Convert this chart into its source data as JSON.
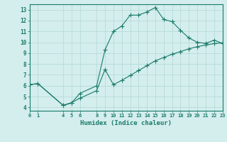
{
  "line1_x": [
    0,
    1,
    4,
    5,
    6,
    8,
    9,
    10,
    11,
    12,
    13,
    14,
    15,
    16,
    17,
    18,
    19,
    20,
    21,
    22,
    23
  ],
  "line1_y": [
    6.1,
    6.2,
    4.2,
    4.4,
    5.3,
    6.0,
    9.3,
    11.0,
    11.5,
    12.5,
    12.5,
    12.8,
    13.2,
    12.1,
    11.9,
    11.1,
    10.4,
    10.0,
    9.9,
    10.2,
    9.9
  ],
  "line2_x": [
    0,
    1,
    4,
    5,
    6,
    8,
    9,
    10,
    11,
    12,
    13,
    14,
    15,
    16,
    17,
    18,
    19,
    20,
    21,
    22,
    23
  ],
  "line2_y": [
    6.1,
    6.2,
    4.2,
    4.45,
    4.85,
    5.55,
    7.5,
    6.1,
    6.5,
    6.95,
    7.4,
    7.85,
    8.3,
    8.6,
    8.9,
    9.15,
    9.4,
    9.6,
    9.75,
    9.88,
    9.95
  ],
  "line_color": "#1a7a6a",
  "bg_color": "#d4eeed",
  "grid_color": "#b0d8d4",
  "xlim": [
    0,
    23
  ],
  "ylim": [
    3.7,
    13.5
  ],
  "yticks": [
    4,
    5,
    6,
    7,
    8,
    9,
    10,
    11,
    12,
    13
  ],
  "xticks": [
    0,
    1,
    4,
    5,
    6,
    8,
    9,
    10,
    11,
    12,
    13,
    14,
    15,
    16,
    17,
    18,
    19,
    20,
    21,
    22,
    23
  ],
  "xlabel": "Humidex (Indice chaleur)",
  "marker": "+"
}
